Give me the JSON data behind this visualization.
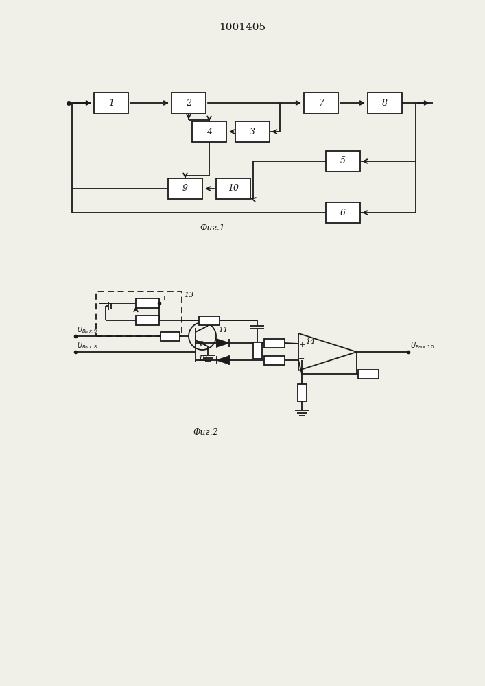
{
  "title": "1001405",
  "fig1_caption": "Фиг.1",
  "fig2_caption": "Фиг.2",
  "bg_color": "#f0efe8",
  "line_color": "#1a1a1a"
}
